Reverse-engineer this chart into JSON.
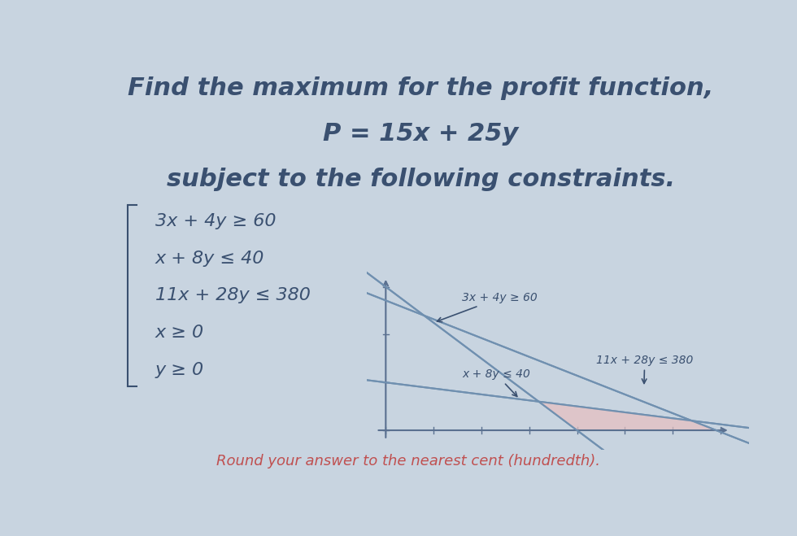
{
  "title_line1": "Find the maximum for the profit function,",
  "title_line2": "P = 15x + 25y",
  "title_line3": "subject to the following constraints.",
  "constraints": [
    "3x + 4y ≥ 60",
    "x + 8y ≤ 40",
    "11x + 28y ≤ 380",
    "x ≥ 0",
    "y ≥ 0"
  ],
  "label_3x4y": "3x + 4y ≥ 60",
  "label_x8y": "x + 8y ≤ 40",
  "label_11x28y": "11x + 28y ≤ 380",
  "footer": "Round your answer to the nearest cent (hundredth).",
  "bg_color": "#c8d4e0",
  "text_color": "#3a5070",
  "footer_color": "#c05050",
  "graph_bg": "#c8d4e0",
  "feasible_fill": "#e8c0c0",
  "line_color": "#7090b0",
  "axis_color": "#5a7090"
}
